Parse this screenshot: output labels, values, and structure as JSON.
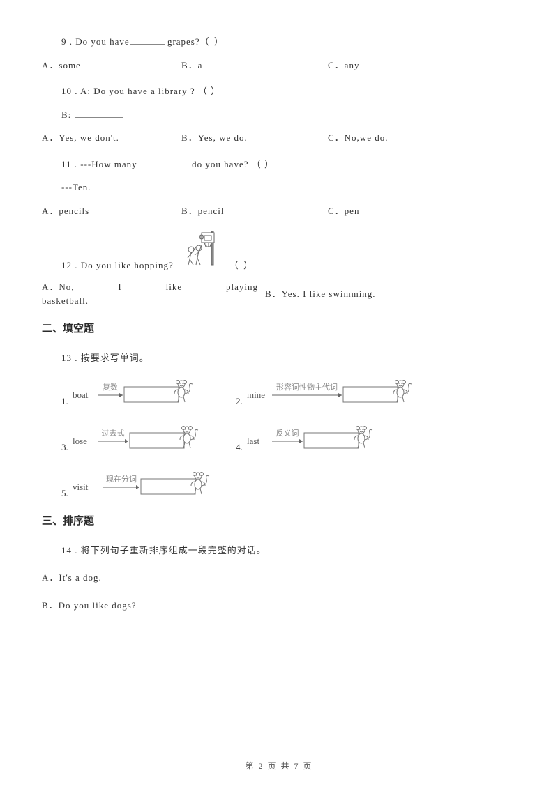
{
  "q9": {
    "prefix": "9 . Do you have",
    "suffix": " grapes?",
    "paren": "（     ）",
    "a": "A．some",
    "b": "B．a",
    "c": "C．any"
  },
  "q10": {
    "line": "10 . A: Do you have a library ?      （     ）",
    "bline": "B: ",
    "a": "A．Yes, we don't.",
    "b": "B．Yes, we do.",
    "c": "C．No,we do."
  },
  "q11": {
    "prefix": "11 . ---How many ",
    "suffix": " do you have? （     ）",
    "line2": "---Ten.",
    "a": "A．pencils",
    "b": "B．pencil",
    "c": "C．pen"
  },
  "q12": {
    "text": "12 . Do you like hopping?",
    "paren": "（     ）",
    "a_words": [
      "A．No,",
      "I",
      "like",
      "playing",
      "basketball."
    ],
    "b": "B．Yes. I like swimming."
  },
  "sec2": "二、填空题",
  "q13": {
    "title": "13 . 按要求写单词。",
    "items": [
      {
        "n": "1.",
        "word": "boat",
        "hint": "复数"
      },
      {
        "n": "2.",
        "word": "mine",
        "hint": "形容词性物主代词"
      },
      {
        "n": "3.",
        "word": "lose",
        "hint": "过去式"
      },
      {
        "n": "4.",
        "word": "last",
        "hint": "反义词"
      },
      {
        "n": "5.",
        "word": "visit",
        "hint": "现在分词"
      }
    ]
  },
  "sec3": "三、排序题",
  "q14": {
    "title": "14 . 将下列句子重新排序组成一段完整的对话。",
    "a": "A．It's a dog.",
    "b": "B．Do you like dogs?"
  },
  "footer": "第 2 页 共 7 页",
  "style": {
    "monkey_stroke": "#777777",
    "monkey_fill": "#ffffff",
    "arrow_color": "#666666",
    "hint_color": "#888888",
    "bball_stroke": "#666666"
  }
}
